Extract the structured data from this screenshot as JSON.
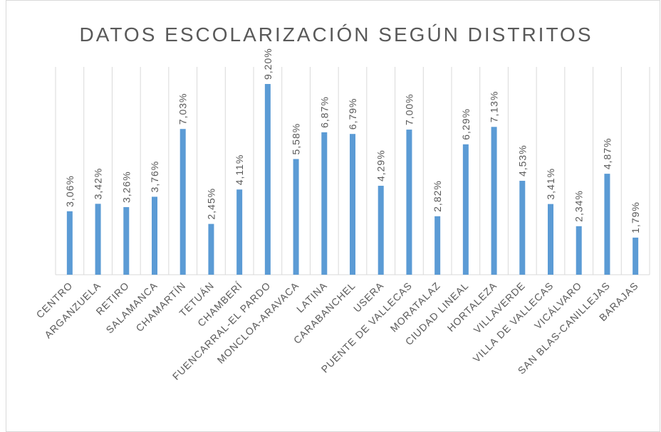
{
  "chart_data": {
    "type": "bar",
    "title": "DATOS ESCOLARIZACIÓN SEGÚN DISTRITOS",
    "categories": [
      "CENTRO",
      "ARGANZUELA",
      "RETIRO",
      "SALAMANCA",
      "CHAMARTÍN",
      "TETUÁN",
      "CHAMBERÍ",
      "FUENCARRAL-EL PARDO",
      "MONCLOA-ARAVACA",
      "LATINA",
      "CARABANCHEL",
      "USERA",
      "PUENTE DE VALLECAS",
      "MORATALAZ",
      "CIUDAD LINEAL",
      "HORTALEZA",
      "VILLAVERDE",
      "VILLA DE VALLECAS",
      "VICÁLVARO",
      "SAN BLAS-CANILLEJAS",
      "BARAJAS"
    ],
    "values": [
      3.06,
      3.42,
      3.26,
      3.76,
      7.03,
      2.45,
      4.11,
      9.2,
      5.58,
      6.87,
      6.79,
      4.29,
      7.0,
      2.82,
      6.29,
      7.13,
      4.53,
      3.41,
      2.34,
      4.87,
      1.79
    ],
    "value_labels": [
      "3,06%",
      "3,42%",
      "3,26%",
      "3,76%",
      "7,03%",
      "2,45%",
      "4,11%",
      "9,20%",
      "5,58%",
      "6,87%",
      "6,79%",
      "4,29%",
      "7,00%",
      "2,82%",
      "6,29%",
      "7,13%",
      "4,53%",
      "3,41%",
      "2,34%",
      "4,87%",
      "1,79%"
    ],
    "color": "#5b9bd5"
  }
}
